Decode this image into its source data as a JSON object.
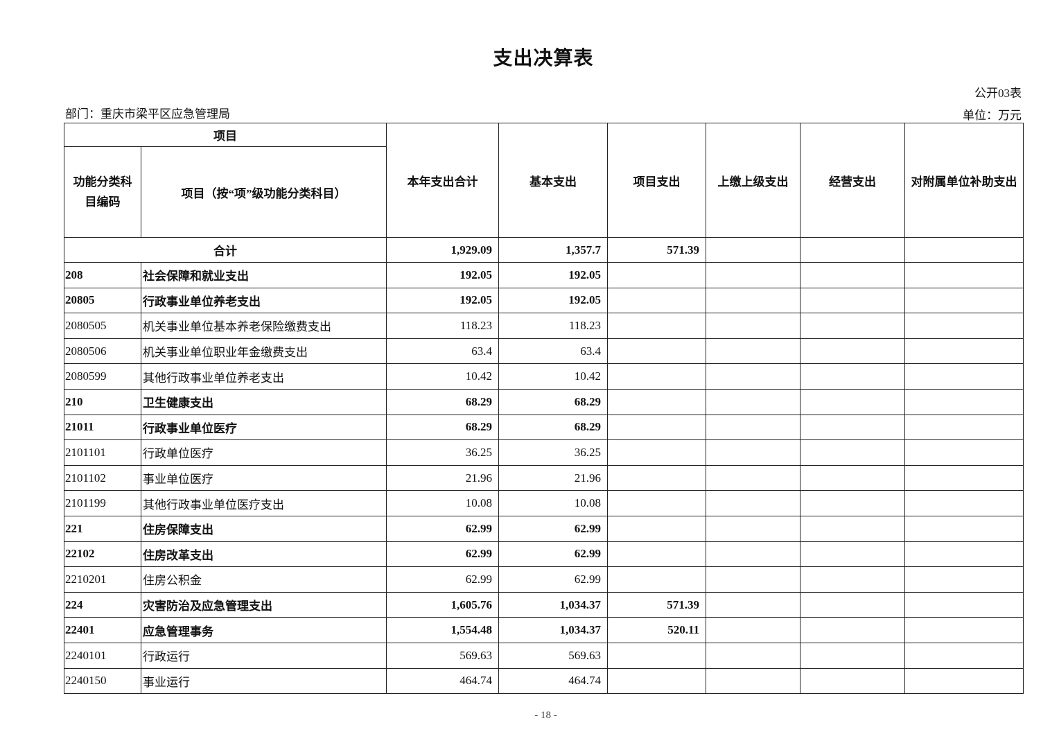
{
  "title": "支出决算表",
  "table_no": "公开03表",
  "department": "部门：重庆市梁平区应急管理局",
  "unit": "单位：万元",
  "headers": {
    "item": "项目",
    "code": "功能分类科目编码",
    "name": "项目（按“项”级功能分类科目）",
    "total": "本年支出合计",
    "basic": "基本支出",
    "project": "项目支出",
    "upper": "上缴上级支出",
    "business": "经营支出",
    "subsidy": "对附属单位补助支出"
  },
  "total_row": {
    "label": "合计",
    "total": "1,929.09",
    "basic": "1,357.7",
    "project": "571.39",
    "upper": "",
    "business": "",
    "subsidy": ""
  },
  "rows": [
    {
      "code": "208",
      "name": "社会保障和就业支出",
      "total": "192.05",
      "basic": "192.05",
      "project": "",
      "bold": true
    },
    {
      "code": "20805",
      "name": "行政事业单位养老支出",
      "total": "192.05",
      "basic": "192.05",
      "project": "",
      "bold": true
    },
    {
      "code": "2080505",
      "name": "机关事业单位基本养老保险缴费支出",
      "total": "118.23",
      "basic": "118.23",
      "project": "",
      "bold": false
    },
    {
      "code": "2080506",
      "name": "机关事业单位职业年金缴费支出",
      "total": "63.4",
      "basic": "63.4",
      "project": "",
      "bold": false
    },
    {
      "code": "2080599",
      "name": "其他行政事业单位养老支出",
      "total": "10.42",
      "basic": "10.42",
      "project": "",
      "bold": false
    },
    {
      "code": "210",
      "name": "卫生健康支出",
      "total": "68.29",
      "basic": "68.29",
      "project": "",
      "bold": true
    },
    {
      "code": "21011",
      "name": "行政事业单位医疗",
      "total": "68.29",
      "basic": "68.29",
      "project": "",
      "bold": true
    },
    {
      "code": "2101101",
      "name": "行政单位医疗",
      "total": "36.25",
      "basic": "36.25",
      "project": "",
      "bold": false
    },
    {
      "code": "2101102",
      "name": "事业单位医疗",
      "total": "21.96",
      "basic": "21.96",
      "project": "",
      "bold": false
    },
    {
      "code": "2101199",
      "name": "其他行政事业单位医疗支出",
      "total": "10.08",
      "basic": "10.08",
      "project": "",
      "bold": false
    },
    {
      "code": "221",
      "name": "住房保障支出",
      "total": "62.99",
      "basic": "62.99",
      "project": "",
      "bold": true
    },
    {
      "code": "22102",
      "name": "住房改革支出",
      "total": "62.99",
      "basic": "62.99",
      "project": "",
      "bold": true
    },
    {
      "code": "2210201",
      "name": "住房公积金",
      "total": "62.99",
      "basic": "62.99",
      "project": "",
      "bold": false
    },
    {
      "code": "224",
      "name": "灾害防治及应急管理支出",
      "total": "1,605.76",
      "basic": "1,034.37",
      "project": "571.39",
      "bold": true
    },
    {
      "code": "22401",
      "name": "应急管理事务",
      "total": "1,554.48",
      "basic": "1,034.37",
      "project": "520.11",
      "bold": true
    },
    {
      "code": "2240101",
      "name": "行政运行",
      "total": "569.63",
      "basic": "569.63",
      "project": "",
      "bold": false
    },
    {
      "code": "2240150",
      "name": "事业运行",
      "total": "464.74",
      "basic": "464.74",
      "project": "",
      "bold": false
    }
  ],
  "page_number": "- 18 -"
}
